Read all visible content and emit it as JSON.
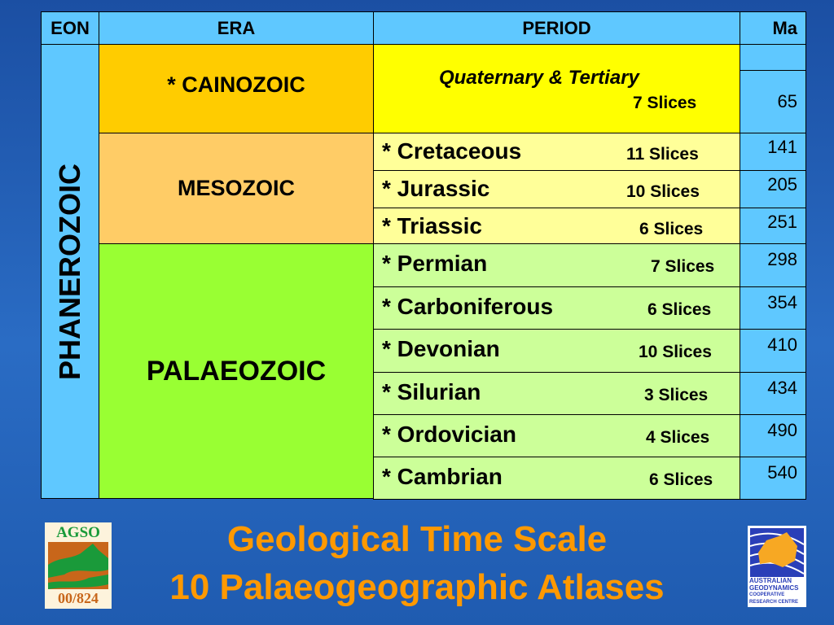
{
  "table": {
    "headers": {
      "eon": "EON",
      "era": "ERA",
      "period": "PERIOD",
      "ma": "Ma"
    },
    "eon": "PHANEROZOIC",
    "eras": [
      {
        "name": "* CAINOZOIC",
        "color": "#ffcc00"
      },
      {
        "name": "MESOZOIC",
        "color": "#ffcc66"
      },
      {
        "name": "PALAEOZOIC",
        "color": "#99ff33"
      }
    ],
    "cainozoic_period": {
      "name": "Quaternary & Tertiary",
      "slices": "7 Slices",
      "ma": "65",
      "color": "#ffff00"
    },
    "mesozoic_periods": [
      {
        "name": "* Cretaceous",
        "slices": "11 Slices",
        "ma": "141"
      },
      {
        "name": "* Jurassic",
        "slices": "10 Slices",
        "ma": "205"
      },
      {
        "name": "* Triassic",
        "slices": "6 Slices",
        "ma": "251"
      }
    ],
    "palaeozoic_periods": [
      {
        "name": "* Permian",
        "slices": "7 Slices",
        "ma": "298"
      },
      {
        "name": "* Carboniferous",
        "slices": "6 Slices",
        "ma": "354"
      },
      {
        "name": "* Devonian",
        "slices": "10 Slices",
        "ma": "410"
      },
      {
        "name": "* Silurian",
        "slices": "3 Slices",
        "ma": "434"
      },
      {
        "name": "* Ordovician",
        "slices": "4 Slices",
        "ma": "490"
      },
      {
        "name": "* Cambrian",
        "slices": "6 Slices",
        "ma": "540"
      }
    ],
    "colors": {
      "header": "#5fc8ff",
      "mesozoic_period": "#ffff99",
      "palaeozoic_period": "#ccff99"
    }
  },
  "title": {
    "line1": "Geological Time Scale",
    "line2": "10 Palaeogeographic Atlases",
    "color": "#ff9900"
  },
  "logos": {
    "agso": {
      "top": "AGSO",
      "bottom": "00/824"
    },
    "agcrc": {
      "lines": [
        "AUSTRALIAN",
        "GEODYNAMICS",
        "COOPERATIVE",
        "RESEARCH CENTRE"
      ]
    }
  }
}
